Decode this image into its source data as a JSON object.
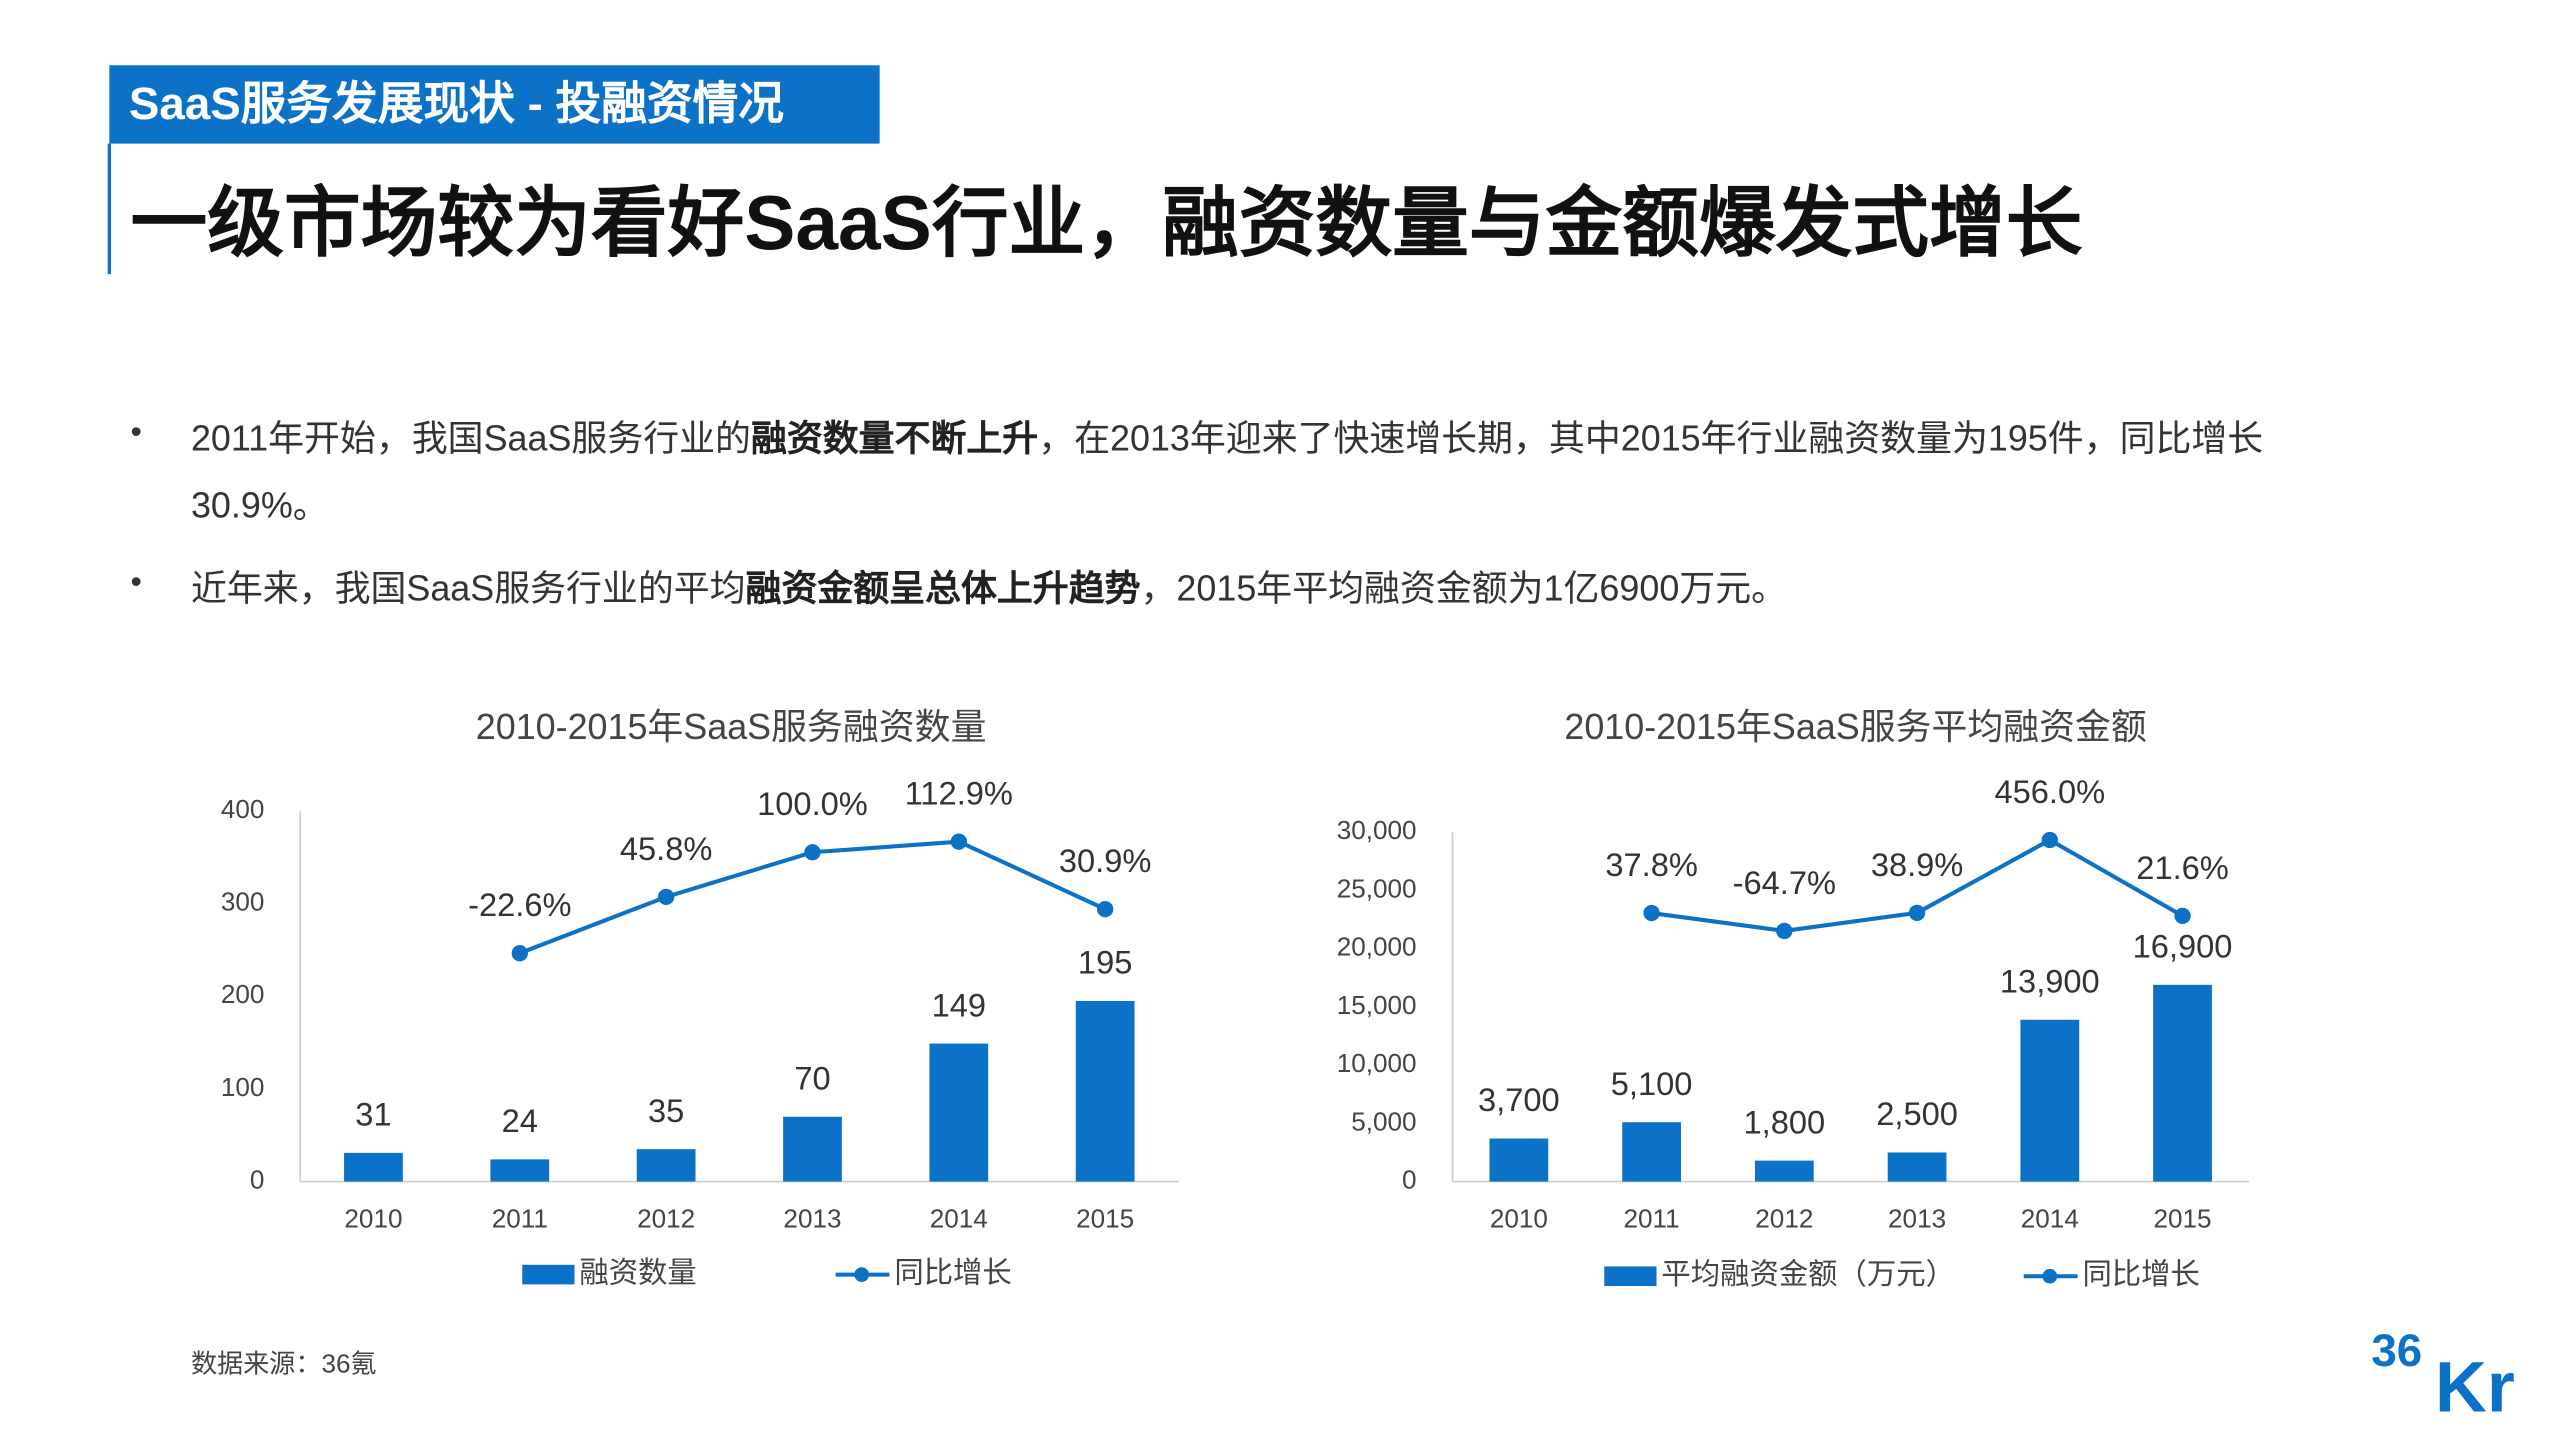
{
  "header": {
    "tag": "SaaS服务发展现状 - 投融资情况",
    "title": "一级市场较为看好SaaS行业，融资数量与金额爆发式增长"
  },
  "bullets": [
    [
      {
        "text": "2011年开始，我国SaaS服务行业的"
      },
      {
        "text": "融资数量不断上升",
        "bold": true
      },
      {
        "text": "，在2013年迎来了快速增长期，其中2015年行业融资数量为195件，同比增长30.9%。"
      }
    ],
    [
      {
        "text": "近年来，我国SaaS服务行业的平均"
      },
      {
        "text": "融资金额呈总体上升趋势",
        "bold": true
      },
      {
        "text": "，2015年平均融资金额为1亿6900万元。"
      }
    ]
  ],
  "chart_data": [
    {
      "type": "bar-line",
      "title": "2010-2015年SaaS服务融资数量",
      "categories": [
        "2010",
        "2011",
        "2012",
        "2013",
        "2014",
        "2015"
      ],
      "ylim": [
        0,
        400
      ],
      "yticks": [
        0,
        100,
        200,
        300,
        400
      ],
      "y2lim": [
        -300,
        150
      ],
      "series": [
        {
          "name": "融资数量",
          "type": "bar",
          "color": "#0b72c8",
          "values": [
            31,
            24,
            35,
            70,
            149,
            195
          ]
        },
        {
          "name": "同比增长",
          "type": "line",
          "axis": "y2",
          "color": "#0b72c8",
          "values": [
            null,
            -22.6,
            45.8,
            100.0,
            112.9,
            30.9
          ],
          "value_labels": [
            null,
            "-22.6%",
            "45.8%",
            "100.0%",
            "112.9%",
            "30.9%"
          ]
        }
      ]
    },
    {
      "type": "bar-line",
      "title": "2010-2015年SaaS服务平均融资金额",
      "categories": [
        "2010",
        "2011",
        "2012",
        "2013",
        "2014",
        "2015"
      ],
      "ylim": [
        0,
        30000
      ],
      "yticks": [
        0,
        {
          "value": 5000,
          "label": "5,000"
        },
        {
          "value": 10000,
          "label": "10,000"
        },
        {
          "value": 15000,
          "label": "15,000"
        },
        {
          "value": 20000,
          "label": "20,000"
        },
        {
          "value": 25000,
          "label": "25,000"
        },
        {
          "value": 30000,
          "label": "30,000"
        }
      ],
      "y2lim": [
        -1500,
        500
      ],
      "series": [
        {
          "name": "平均融资金额（万元）",
          "type": "bar",
          "color": "#0b72c8",
          "values": [
            3700,
            5100,
            1800,
            2500,
            13900,
            16900
          ],
          "value_labels": [
            "3,700",
            "5,100",
            "1,800",
            "2,500",
            "13,900",
            "16,900"
          ]
        },
        {
          "name": "同比增长",
          "type": "line",
          "axis": "y2",
          "color": "#0b72c8",
          "values": [
            null,
            37.8,
            -64.7,
            38.9,
            456.0,
            21.6
          ],
          "value_labels": [
            null,
            "37.8%",
            "-64.7%",
            "38.9%",
            "456.0%",
            "21.6%"
          ]
        }
      ]
    }
  ],
  "source": "数据来源：36氪",
  "logo": {
    "top": "36",
    "bottom": "Kr"
  }
}
